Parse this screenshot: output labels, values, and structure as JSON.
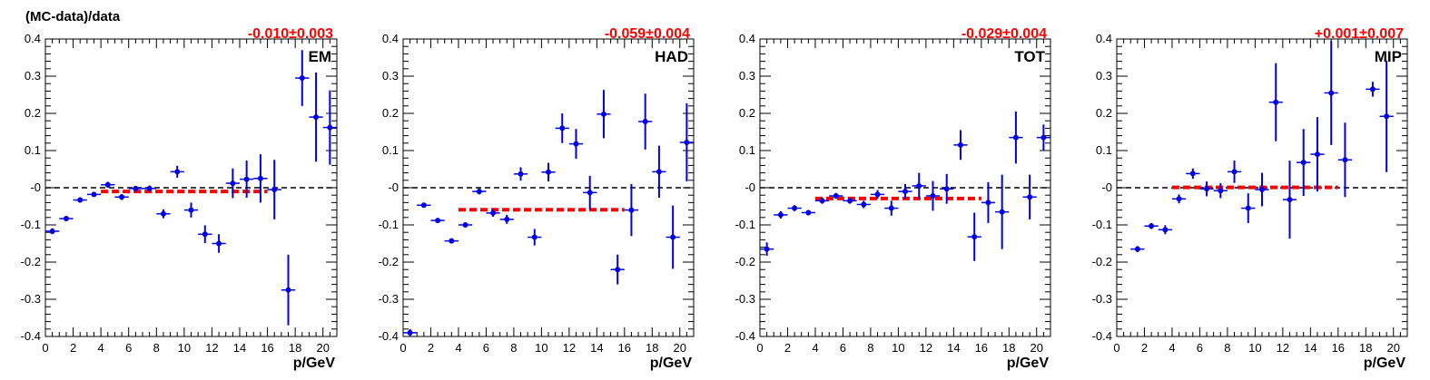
{
  "figure": {
    "ylabel": "(MC-data)/data",
    "xlabel": "p/GeV"
  },
  "chart_data": [
    {
      "type": "scatter",
      "panel_label": "EM",
      "fit_label": "-0.010±0.003",
      "fit_value": -0.01,
      "fit_range": [
        4,
        16
      ],
      "xlim": [
        0,
        21
      ],
      "ylim": [
        -0.4,
        0.4
      ],
      "xticks": [
        "0",
        "2",
        "4",
        "6",
        "8",
        "10",
        "12",
        "14",
        "16",
        "18",
        "20"
      ],
      "yticks": [
        "-0.4",
        "-0.3",
        "-0.2",
        "-0.1",
        "-0",
        "0.1",
        "0.2",
        "0.3",
        "0.4"
      ],
      "x": [
        0.5,
        1.5,
        2.5,
        3.5,
        4.5,
        5.5,
        6.5,
        7.5,
        8.5,
        9.5,
        10.5,
        11.5,
        12.5,
        13.5,
        14.5,
        15.5,
        16.5,
        17.5,
        18.5,
        19.5,
        20.5
      ],
      "y": [
        -0.117,
        -0.083,
        -0.033,
        -0.018,
        0.008,
        -0.025,
        -0.002,
        -0.002,
        -0.07,
        0.043,
        -0.06,
        -0.125,
        -0.15,
        0.012,
        0.023,
        0.025,
        -0.005,
        -0.275,
        0.295,
        0.19,
        0.162
      ],
      "err": [
        0.008,
        0.006,
        0.007,
        0.006,
        0.008,
        0.008,
        0.007,
        0.008,
        0.012,
        0.016,
        0.02,
        0.024,
        0.025,
        0.04,
        0.05,
        0.065,
        0.08,
        0.095,
        0.075,
        0.12,
        0.1
      ]
    },
    {
      "type": "scatter",
      "panel_label": "HAD",
      "fit_label": "-0.059±0.004",
      "fit_value": -0.059,
      "fit_range": [
        4,
        16
      ],
      "xlim": [
        0,
        21
      ],
      "ylim": [
        -0.4,
        0.4
      ],
      "xticks": [
        "0",
        "2",
        "4",
        "6",
        "8",
        "10",
        "12",
        "14",
        "16",
        "18",
        "20"
      ],
      "yticks": [
        "-0.4",
        "-0.3",
        "-0.2",
        "-0.1",
        "-0",
        "0.1",
        "0.2",
        "0.3",
        "0.4"
      ],
      "x": [
        0.5,
        1.5,
        2.5,
        3.5,
        4.5,
        5.5,
        6.5,
        7.5,
        8.5,
        9.5,
        10.5,
        11.5,
        12.5,
        13.5,
        14.5,
        15.5,
        16.5,
        17.5,
        18.5,
        19.5,
        20.5
      ],
      "y": [
        -0.39,
        -0.047,
        -0.088,
        -0.143,
        -0.1,
        -0.01,
        -0.068,
        -0.085,
        0.037,
        -0.133,
        0.042,
        0.16,
        0.118,
        -0.013,
        0.198,
        -0.22,
        -0.06,
        0.178,
        0.043,
        -0.133,
        0.122
      ],
      "err": [
        0.01,
        0.006,
        0.006,
        0.007,
        0.007,
        0.008,
        0.01,
        0.012,
        0.018,
        0.022,
        0.025,
        0.04,
        0.04,
        0.045,
        0.065,
        0.04,
        0.07,
        0.075,
        0.07,
        0.085,
        0.105
      ]
    },
    {
      "type": "scatter",
      "panel_label": "TOT",
      "fit_label": "-0.029±0.004",
      "fit_value": -0.029,
      "fit_range": [
        4,
        16
      ],
      "xlim": [
        0,
        21
      ],
      "ylim": [
        -0.4,
        0.4
      ],
      "xticks": [
        "0",
        "2",
        "4",
        "6",
        "8",
        "10",
        "12",
        "14",
        "16",
        "18",
        "20"
      ],
      "yticks": [
        "-0.4",
        "-0.3",
        "-0.2",
        "-0.1",
        "-0",
        "0.1",
        "0.2",
        "0.3",
        "0.4"
      ],
      "x": [
        0.5,
        1.5,
        2.5,
        3.5,
        4.5,
        5.5,
        6.5,
        7.5,
        8.5,
        9.5,
        10.5,
        11.5,
        12.5,
        13.5,
        14.5,
        15.5,
        16.5,
        17.5,
        18.5,
        19.5,
        20.5
      ],
      "y": [
        -0.165,
        -0.073,
        -0.055,
        -0.067,
        -0.035,
        -0.022,
        -0.035,
        -0.045,
        -0.018,
        -0.055,
        -0.01,
        0.005,
        -0.022,
        -0.003,
        0.115,
        -0.132,
        -0.04,
        -0.065,
        0.135,
        -0.025,
        0.135
      ],
      "err": [
        0.018,
        0.01,
        0.008,
        0.007,
        0.008,
        0.008,
        0.008,
        0.01,
        0.012,
        0.02,
        0.02,
        0.035,
        0.04,
        0.04,
        0.04,
        0.065,
        0.055,
        0.1,
        0.07,
        0.06,
        0.035
      ]
    },
    {
      "type": "scatter",
      "panel_label": "MIP",
      "fit_label": "+0.001±0.007",
      "fit_value": 0.001,
      "fit_range": [
        4,
        16
      ],
      "xlim": [
        0,
        21
      ],
      "ylim": [
        -0.4,
        0.4
      ],
      "xticks": [
        "0",
        "2",
        "4",
        "6",
        "8",
        "10",
        "12",
        "14",
        "16",
        "18",
        "20"
      ],
      "yticks": [
        "-0.4",
        "-0.3",
        "-0.2",
        "-0.1",
        "-0",
        "0.1",
        "0.2",
        "0.3",
        "0.4"
      ],
      "x": [
        1.5,
        2.5,
        3.5,
        4.5,
        5.5,
        6.5,
        7.5,
        8.5,
        9.5,
        10.5,
        11.5,
        12.5,
        13.5,
        14.5,
        15.5,
        16.5,
        18.5,
        19.5
      ],
      "y": [
        -0.165,
        -0.103,
        -0.113,
        -0.03,
        0.038,
        -0.003,
        -0.008,
        0.043,
        -0.055,
        -0.005,
        0.23,
        -0.032,
        0.068,
        0.09,
        0.255,
        0.075,
        0.265,
        0.192
      ],
      "err": [
        0.008,
        0.008,
        0.012,
        0.012,
        0.014,
        0.02,
        0.02,
        0.03,
        0.04,
        0.045,
        0.105,
        0.105,
        0.09,
        0.1,
        0.14,
        0.1,
        0.02,
        0.15
      ]
    }
  ]
}
